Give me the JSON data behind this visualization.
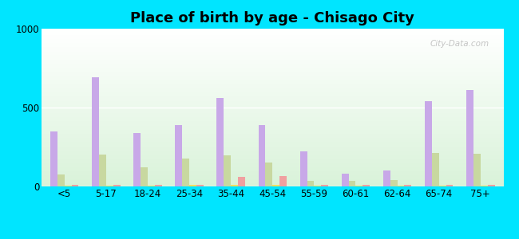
{
  "title": "Place of birth by age - Chisago City",
  "background_color": "#00e5ff",
  "categories": [
    "<5",
    "5-17",
    "18-24",
    "25-34",
    "35-44",
    "45-54",
    "55-59",
    "60-61",
    "62-64",
    "65-74",
    "75+"
  ],
  "born_in_state": [
    350,
    690,
    340,
    390,
    560,
    390,
    220,
    80,
    100,
    540,
    610
  ],
  "born_other_state": [
    75,
    200,
    120,
    175,
    195,
    150,
    35,
    35,
    40,
    210,
    205
  ],
  "native_outside_us": [
    5,
    5,
    5,
    8,
    8,
    8,
    5,
    5,
    5,
    5,
    5
  ],
  "foreign_born": [
    10,
    10,
    8,
    10,
    60,
    65,
    12,
    8,
    8,
    8,
    10
  ],
  "color_state": "#c8a8e8",
  "color_other_state": "#c8d8a0",
  "color_native": "#f0e060",
  "color_foreign": "#f0a0a0",
  "ylim": [
    0,
    1000
  ],
  "yticks": [
    0,
    500,
    1000
  ],
  "bar_width": 0.17,
  "title_fontsize": 13,
  "tick_fontsize": 8.5,
  "legend_fontsize": 8.5,
  "watermark": "City-Data.com"
}
